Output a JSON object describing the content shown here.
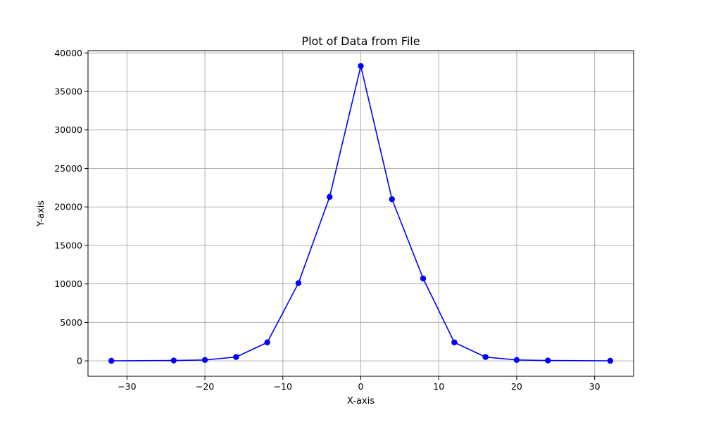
{
  "chart_data": {
    "type": "line",
    "title": "Plot of Data from File",
    "xlabel": "X-axis",
    "ylabel": "Y-axis",
    "xlim": [
      -35,
      35
    ],
    "ylim": [
      -2000,
      40300
    ],
    "xticks": [
      -30,
      -20,
      -10,
      0,
      10,
      20,
      30
    ],
    "xtick_labels": [
      "−30",
      "−20",
      "−10",
      "0",
      "10",
      "20",
      "30"
    ],
    "yticks": [
      0,
      5000,
      10000,
      15000,
      20000,
      25000,
      30000,
      35000,
      40000
    ],
    "ytick_labels": [
      "0",
      "5000",
      "10000",
      "15000",
      "20000",
      "25000",
      "30000",
      "35000",
      "40000"
    ],
    "grid": true,
    "series": [
      {
        "color": "#0000ff",
        "marker": "circle",
        "x": [
          -32,
          -24,
          -20,
          -16,
          -12,
          -8,
          -4,
          0,
          4,
          8,
          12,
          16,
          20,
          24,
          32
        ],
        "y": [
          10,
          50,
          120,
          500,
          2400,
          10100,
          21300,
          38300,
          21000,
          10700,
          2400,
          500,
          120,
          50,
          10
        ]
      }
    ]
  }
}
